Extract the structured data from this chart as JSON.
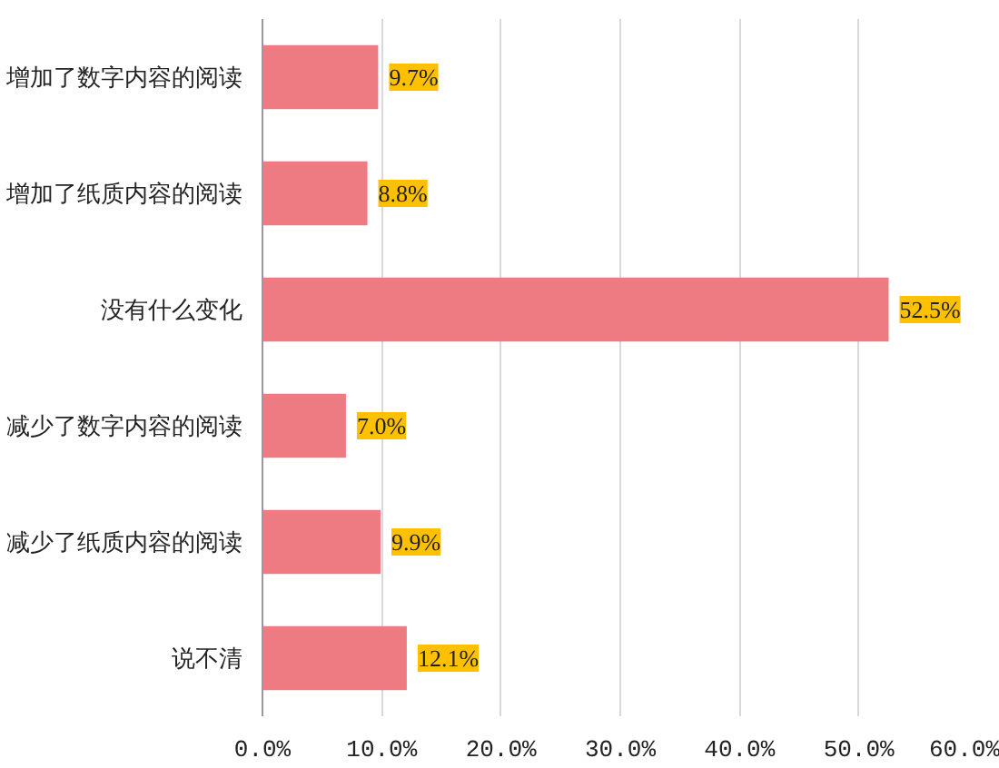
{
  "chart_data": {
    "type": "bar",
    "orientation": "horizontal",
    "categories": [
      "增加了数字内容的阅读",
      "增加了纸质内容的阅读",
      "没有什么变化",
      "减少了数字内容的阅读",
      "减少了纸质内容的阅读",
      "说不清"
    ],
    "values": [
      9.7,
      8.8,
      52.5,
      7.0,
      9.9,
      12.1
    ],
    "value_labels": [
      "9.7%",
      "8.8%",
      "52.5%",
      "7.0%",
      "9.9%",
      "12.1%"
    ],
    "color": "#ee7b82",
    "xlim": [
      0,
      60
    ],
    "xticks": [
      {
        "value": 0,
        "label": "0.0%"
      },
      {
        "value": 10,
        "label": "10.0%"
      },
      {
        "value": 20,
        "label": "20.0%"
      },
      {
        "value": 30,
        "label": "30.0%"
      },
      {
        "value": 40,
        "label": "40.0%"
      },
      {
        "value": 50,
        "label": "50.0%"
      },
      {
        "value": 60,
        "label": "60.0%"
      }
    ],
    "grid": "x"
  }
}
